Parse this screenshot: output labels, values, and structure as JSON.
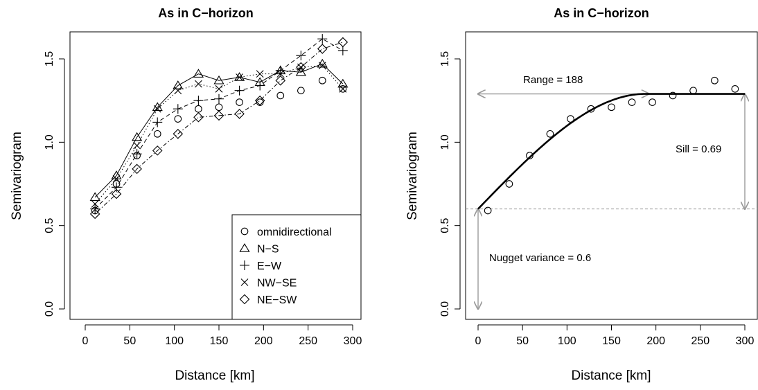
{
  "chart_data": [
    {
      "type": "line",
      "title": "As in C−horizon",
      "xlabel": "Distance [km]",
      "ylabel": "Semivariogram",
      "xlim": [
        0,
        300
      ],
      "ylim": [
        0,
        1.65
      ],
      "xticks": [
        "0",
        "50",
        "100",
        "150",
        "200",
        "250",
        "300"
      ],
      "yticks": [
        "0.0",
        "0.5",
        "1.0",
        "1.5"
      ],
      "legend_position": "bottom-right",
      "x": [
        11,
        35,
        58,
        81,
        104,
        127,
        150,
        173,
        196,
        219,
        242,
        266,
        289
      ],
      "series": [
        {
          "name": "omnidirectional",
          "marker": "circle",
          "line": "none",
          "values": [
            0.59,
            0.75,
            0.92,
            1.05,
            1.14,
            1.2,
            1.21,
            1.24,
            1.24,
            1.28,
            1.31,
            1.37,
            1.32
          ]
        },
        {
          "name": "N−S",
          "marker": "triangle",
          "line": "solid",
          "values": [
            0.67,
            0.8,
            1.03,
            1.21,
            1.34,
            1.41,
            1.37,
            1.39,
            1.36,
            1.43,
            1.42,
            1.47,
            1.35
          ]
        },
        {
          "name": "E−W",
          "marker": "plus",
          "line": "dashed",
          "values": [
            0.6,
            0.73,
            0.93,
            1.12,
            1.2,
            1.25,
            1.26,
            1.31,
            1.34,
            1.43,
            1.52,
            1.62,
            1.55
          ]
        },
        {
          "name": "NW−SE",
          "marker": "cross",
          "line": "dotted",
          "values": [
            0.63,
            0.78,
            0.98,
            1.2,
            1.31,
            1.35,
            1.32,
            1.39,
            1.41,
            1.41,
            1.45,
            1.46,
            1.32
          ]
        },
        {
          "name": "NE−SW",
          "marker": "diamond",
          "line": "dotdash",
          "values": [
            0.57,
            0.69,
            0.84,
            0.95,
            1.05,
            1.15,
            1.16,
            1.17,
            1.25,
            1.37,
            1.45,
            1.56,
            1.6
          ]
        }
      ]
    },
    {
      "type": "scatter",
      "title": "As in C−horizon",
      "xlabel": "Distance [km]",
      "ylabel": "Semivariogram",
      "xlim": [
        0,
        300
      ],
      "ylim": [
        0,
        1.65
      ],
      "xticks": [
        "0",
        "50",
        "100",
        "150",
        "200",
        "250",
        "300"
      ],
      "yticks": [
        "0.0",
        "0.5",
        "1.0",
        "1.5"
      ],
      "points": {
        "x": [
          11,
          35,
          58,
          81,
          104,
          127,
          150,
          173,
          196,
          219,
          242,
          266,
          289
        ],
        "y": [
          0.59,
          0.75,
          0.92,
          1.05,
          1.14,
          1.2,
          1.21,
          1.24,
          1.24,
          1.28,
          1.31,
          1.37,
          1.32
        ]
      },
      "model": {
        "type": "spherical",
        "nugget": 0.6,
        "sill": 0.69,
        "range": 188,
        "xmax": 300
      },
      "annotations": {
        "range_label": "Range = 188",
        "sill_label": "Sill = 0.69",
        "nugget_label": "Nugget variance = 0.6"
      },
      "colors": {
        "annotation": "#999999"
      }
    }
  ]
}
